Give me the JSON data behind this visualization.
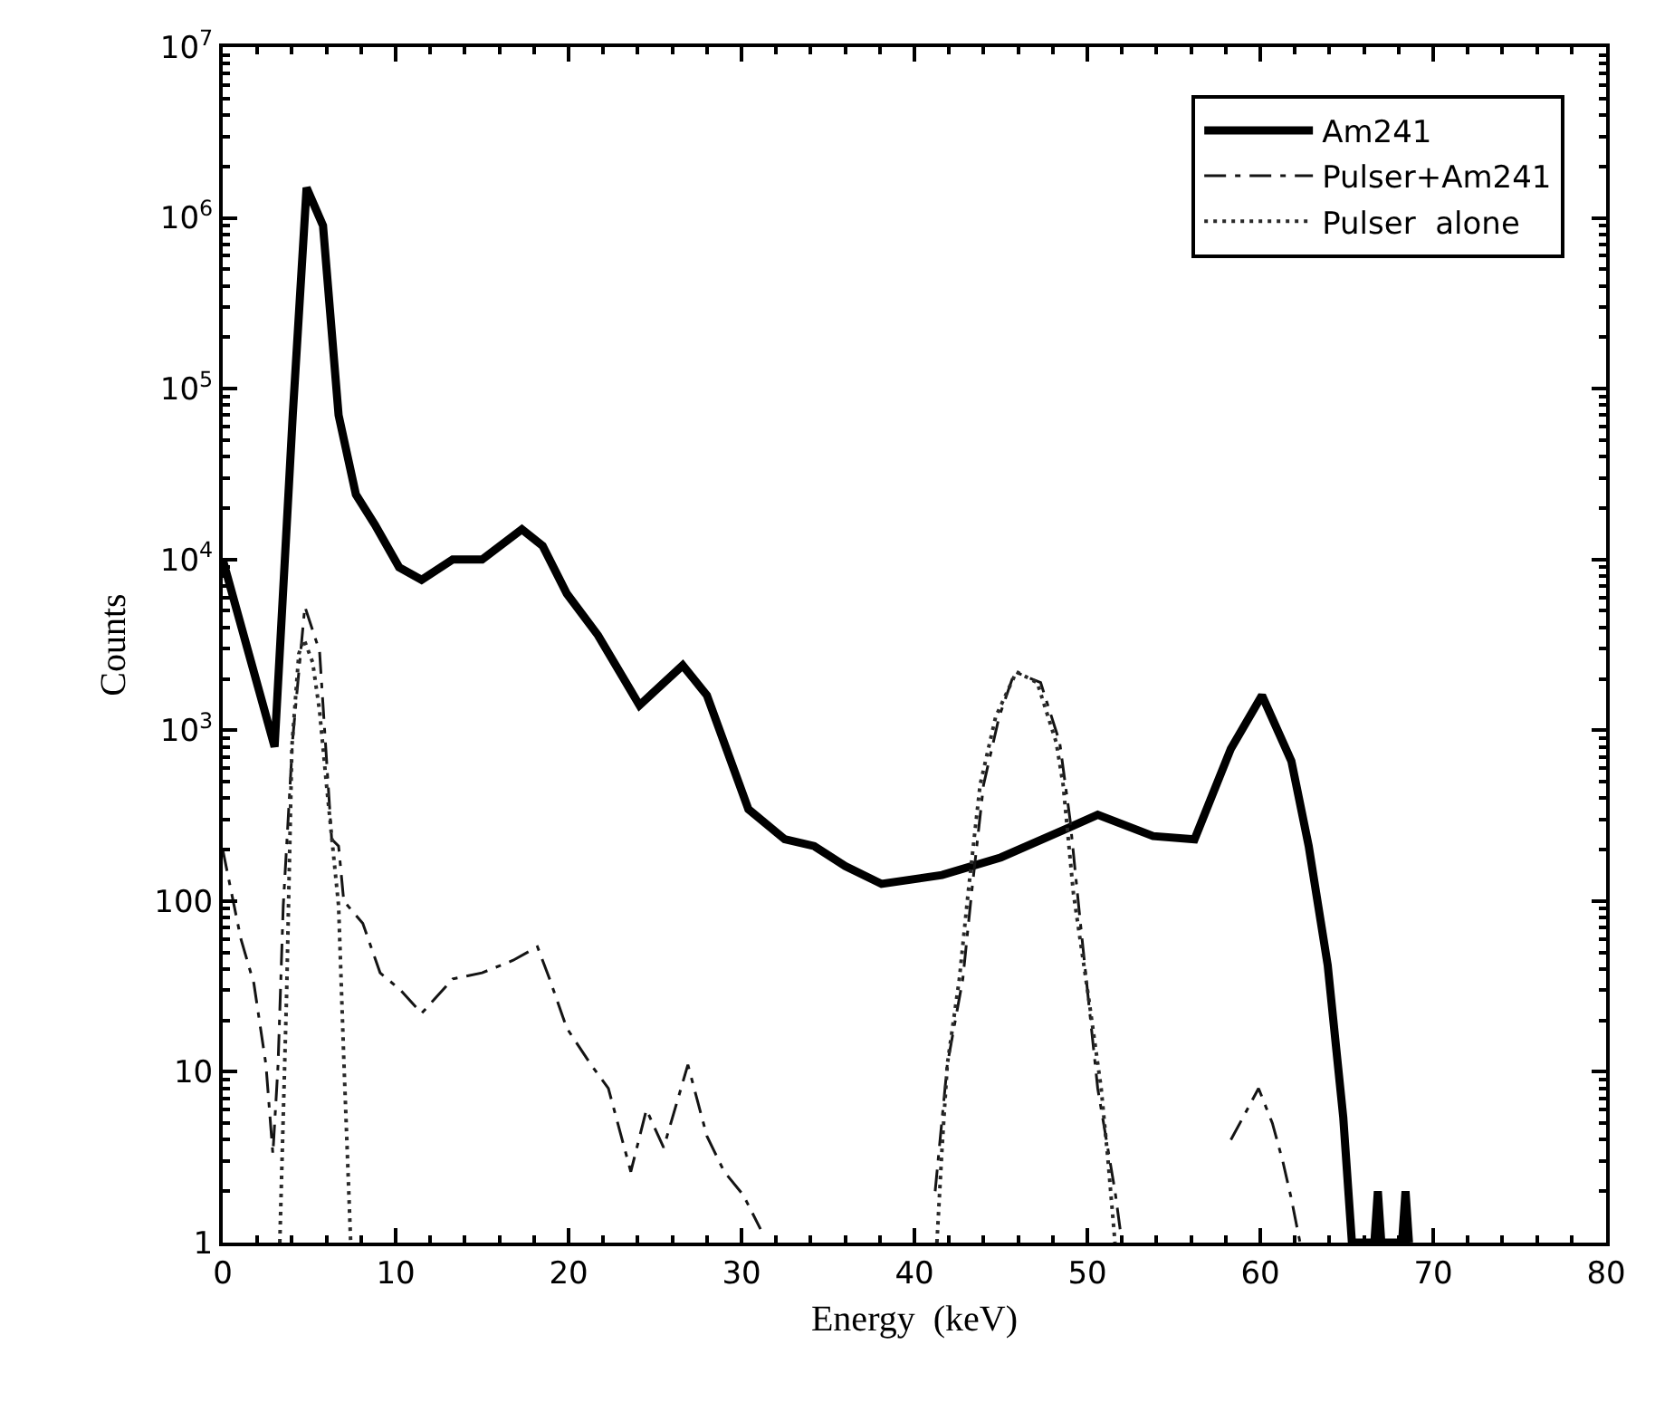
{
  "chart_data": {
    "type": "line",
    "xlabel": "Energy  (keV)",
    "ylabel": "Counts",
    "xlim": [
      0,
      80
    ],
    "xticks": [
      0,
      10,
      20,
      30,
      40,
      50,
      60,
      70,
      80
    ],
    "ylim": [
      1,
      10000000
    ],
    "yticks": [
      1,
      10,
      100,
      {
        "value": 1000,
        "label": "10$^{3}$"
      },
      {
        "value": 10000,
        "label": "10$^{4}$"
      },
      {
        "value": 100000,
        "label": "10$^{5}$"
      },
      {
        "value": 1000000,
        "label": "10$^{6}$"
      },
      {
        "value": 10000000,
        "label": "10$^{7}$"
      }
    ],
    "log": "y",
    "legend": "top right",
    "marker": "none",
    "series": [
      {
        "name": "Am241",
        "color": "#000000",
        "line_style": "solid",
        "x": [
          0,
          3.0,
          4.05,
          4.85,
          5.8,
          6.7,
          7.7,
          8.8,
          10.2,
          11.5,
          13.3,
          15.0,
          17.3,
          18.5,
          19.9,
          21.7,
          24.1,
          26.6,
          28.0,
          30.4,
          32.5,
          34.2,
          36.0,
          38.1,
          41.6,
          45.0,
          48.6,
          50.6,
          53.8,
          56.2,
          58.3,
          60.1,
          61.8,
          62.8,
          63.9,
          64.8,
          65.3,
          66.6,
          66.8,
          67.0,
          68.2,
          68.4,
          68.6
        ],
        "values": [
          10000,
          800,
          70000,
          1500000,
          900000,
          70000,
          24000,
          16000,
          9000,
          7600,
          10000,
          10000,
          15000,
          12000,
          6300,
          3600,
          1400,
          2400,
          1600,
          345,
          230,
          210,
          160,
          126,
          142,
          180,
          260,
          320,
          240,
          230,
          780,
          1600,
          660,
          210,
          42,
          5.4,
          1,
          1,
          2,
          1,
          1,
          2,
          1
        ]
      },
      {
        "name": "Pulser+Am241",
        "color": "#141414",
        "line_style": "dashed",
        "x": [
          0,
          1.05,
          1.8,
          2.5,
          2.9,
          3.2,
          3.5,
          4.05,
          4.75,
          5.6,
          6.3,
          6.7,
          7.0,
          8.1,
          9.1,
          10.3,
          11.5,
          13.3,
          15.0,
          16.8,
          18.2,
          18.9,
          19.9,
          21.3,
          22.3,
          23.6,
          24.5,
          25.5,
          26.9,
          28.0,
          29.0,
          30.1,
          31.1,
          36.0,
          41.2,
          41.9,
          42.8,
          43.3,
          44.0,
          44.9,
          45.8,
          47.3,
          48.4,
          49.0,
          49.6,
          50.6,
          51.6,
          52.0,
          56.0,
          58.3,
          59.0,
          59.9,
          60.7,
          61.3,
          61.8,
          62.3
        ],
        "values": [
          200,
          60,
          33,
          11,
          3.3,
          11,
          94,
          900,
          5300,
          2900,
          230,
          210,
          100,
          74,
          38,
          30,
          22,
          35,
          38,
          45,
          54,
          35,
          18,
          11,
          8,
          2.6,
          6,
          3.6,
          11,
          4.2,
          2.6,
          1.9,
          1.2,
          null,
          2,
          11,
          35,
          110,
          480,
          1200,
          2200,
          1900,
          850,
          300,
          74,
          8,
          2,
          1,
          null,
          4,
          5.4,
          8,
          5,
          3,
          1.8,
          1
        ]
      },
      {
        "name": "Pulser  alone",
        "color": "#2a2a2a",
        "line_style": "dotted",
        "x": [
          3.3,
          3.7,
          4.0,
          4.4,
          4.7,
          5.2,
          5.6,
          6.0,
          6.7,
          7.0,
          7.4,
          20.0,
          41.3,
          41.6,
          41.9,
          42.6,
          43.1,
          43.8,
          44.7,
          45.9,
          47.1,
          48.2,
          48.6,
          49.2,
          50.1,
          50.8,
          51.2,
          51.6
        ],
        "values": [
          1,
          30,
          800,
          2800,
          3400,
          2500,
          1300,
          480,
          94,
          12,
          1,
          null,
          1,
          3.6,
          11,
          35,
          110,
          480,
          1200,
          2200,
          1900,
          850,
          480,
          110,
          26,
          8,
          3,
          1
        ]
      }
    ]
  }
}
